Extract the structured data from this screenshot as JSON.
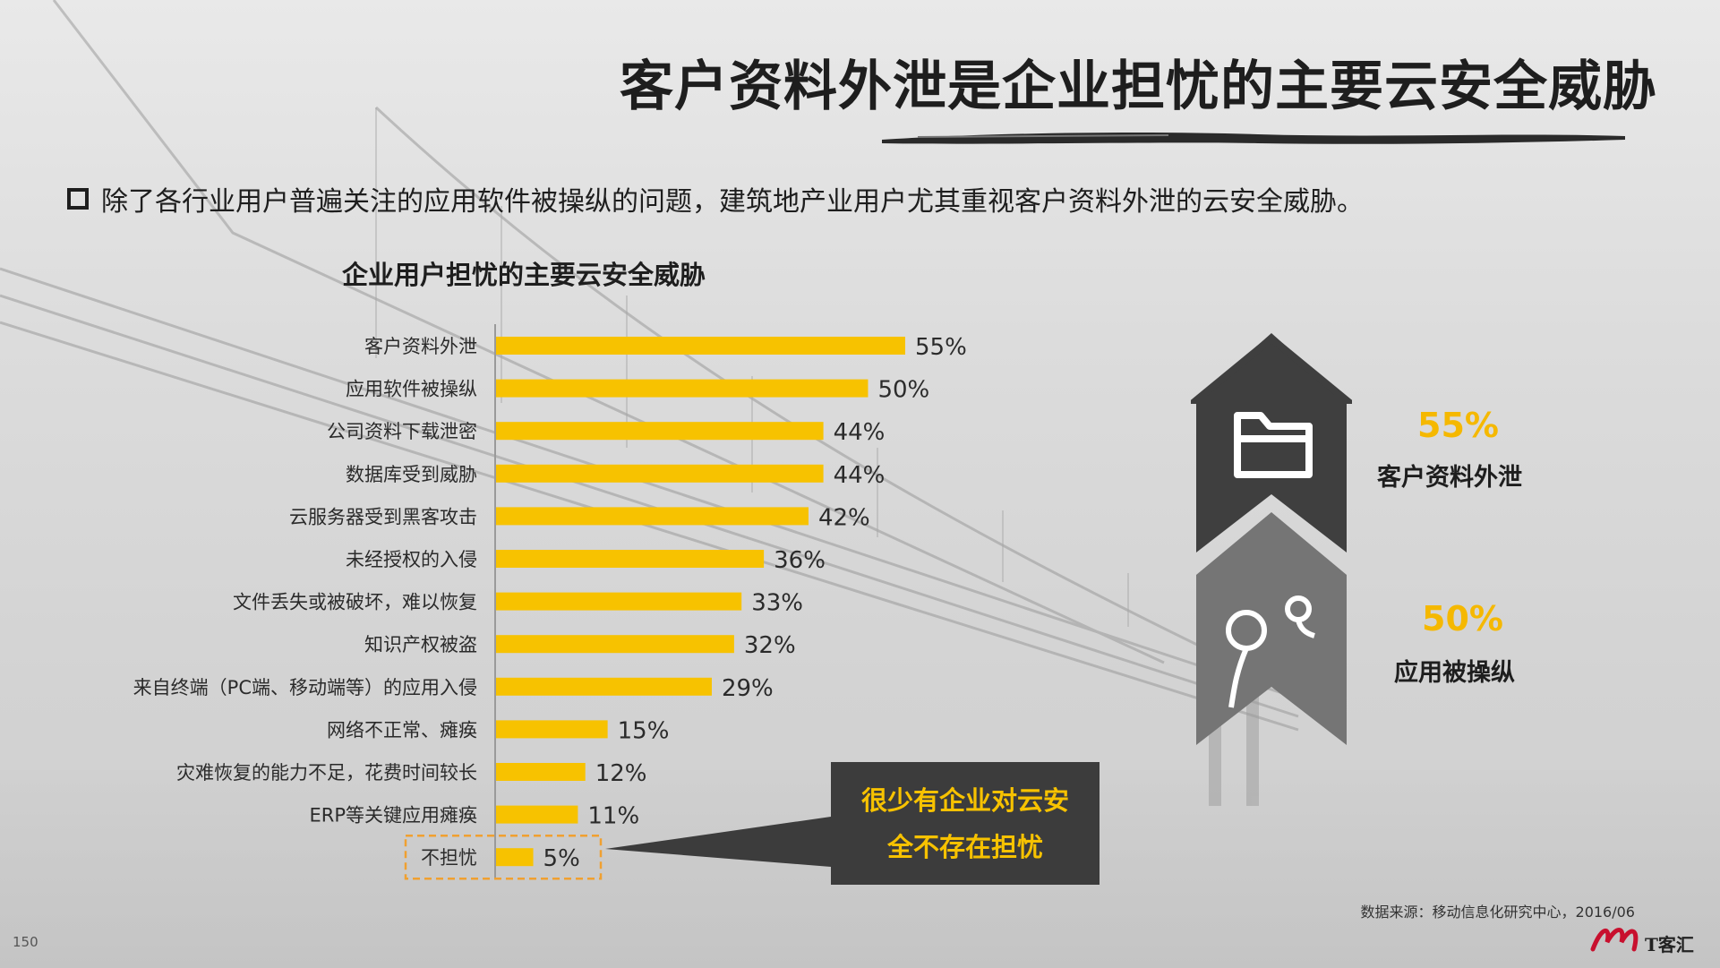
{
  "title": "客户资料外泄是企业担忧的主要云安全威胁",
  "bullet": "除了各行业用户普遍关注的应用软件被操纵的问题，建筑地产业用户尤其重视客户资料外泄的云安全威胁。",
  "chart_data": {
    "type": "bar",
    "orientation": "horizontal",
    "title": "企业用户担忧的主要云安全威胁",
    "categories": [
      "客户资料外泄",
      "应用软件被操纵",
      "公司资料下载泄密",
      "数据库受到威胁",
      "云服务器受到黑客攻击",
      "未经授权的入侵",
      "文件丢失或被破坏，难以恢复",
      "知识产权被盗",
      "来自终端（PC端、移动端等）的应用入侵",
      "网络不正常、瘫痪",
      "灾难恢复的能力不足，花费时间较长",
      "ERP等关键应用瘫痪",
      "不担忧"
    ],
    "values": [
      55,
      50,
      44,
      44,
      42,
      36,
      33,
      32,
      29,
      15,
      12,
      11,
      5
    ],
    "value_labels": [
      "55%",
      "50%",
      "44%",
      "44%",
      "42%",
      "36%",
      "33%",
      "32%",
      "29%",
      "15%",
      "12%",
      "11%",
      "5%"
    ],
    "xlim": [
      0,
      100
    ],
    "bar_color": "#f7c200",
    "highlight_category": "不担忧",
    "highlight_color": "#f0a030",
    "grid": false
  },
  "callout": {
    "line1": "很少有企业对云安",
    "line2": "全不存在担忧"
  },
  "highlights": [
    {
      "percent": "55%",
      "label": "客户资料外泄",
      "icon": "folder-icon"
    },
    {
      "percent": "50%",
      "label": "应用被操纵",
      "icon": "joystick-icon"
    }
  ],
  "source": "数据来源：移动信息化研究中心，2016/06",
  "page_number": "150",
  "logo_text": "T客汇",
  "colors": {
    "accent": "#f7c200",
    "dark": "#3c3c3c",
    "chevron_dark": "#3f3f3f",
    "chevron_light": "#757575"
  }
}
